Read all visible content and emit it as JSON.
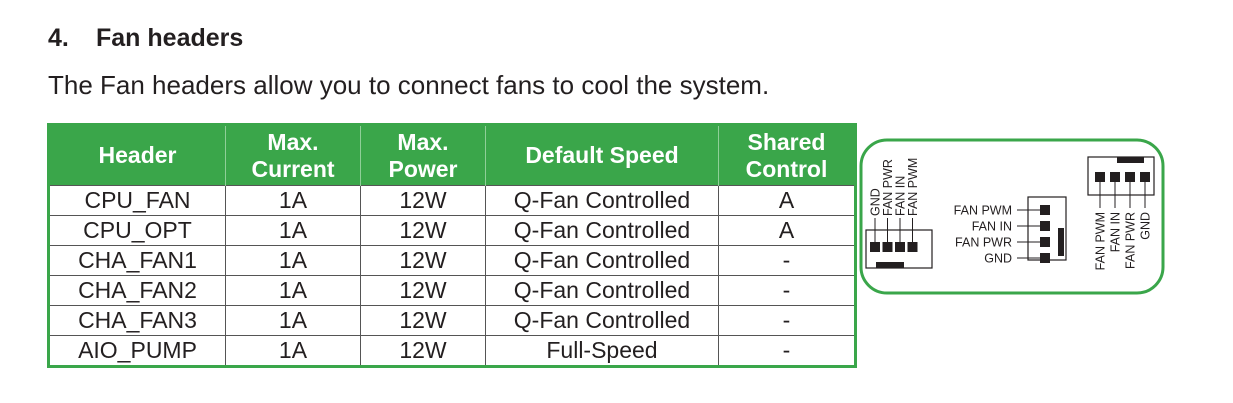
{
  "section": {
    "number": "4.",
    "title": "Fan headers",
    "description": "The Fan headers allow you to connect fans to cool the system."
  },
  "table": {
    "headers": [
      [
        "Header"
      ],
      [
        "Max.",
        "Current"
      ],
      [
        "Max.",
        "Power"
      ],
      [
        "Default Speed"
      ],
      [
        "Shared",
        "Control"
      ]
    ],
    "rows": [
      [
        "CPU_FAN",
        "1A",
        "12W",
        "Q-Fan Controlled",
        "A"
      ],
      [
        "CPU_OPT",
        "1A",
        "12W",
        "Q-Fan Controlled",
        "A"
      ],
      [
        "CHA_FAN1",
        "1A",
        "12W",
        "Q-Fan Controlled",
        "-"
      ],
      [
        "CHA_FAN2",
        "1A",
        "12W",
        "Q-Fan Controlled",
        "-"
      ],
      [
        "CHA_FAN3",
        "1A",
        "12W",
        "Q-Fan Controlled",
        "-"
      ],
      [
        "AIO_PUMP",
        "1A",
        "12W",
        "Full-Speed",
        "-"
      ]
    ]
  },
  "diagram": {
    "left_pins": [
      "GND",
      "FAN PWR",
      "FAN IN",
      "FAN PWM"
    ],
    "middle_pins": [
      "FAN PWM",
      "FAN IN",
      "FAN PWR",
      "GND"
    ],
    "right_pins": [
      "FAN PWM",
      "FAN IN",
      "FAN PWR",
      "GND"
    ]
  },
  "colors": {
    "accent": "#3aa64a"
  }
}
